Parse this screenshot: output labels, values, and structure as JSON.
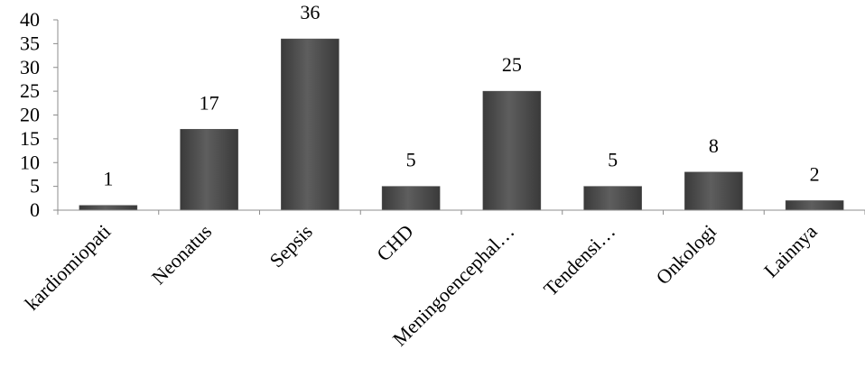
{
  "chart_data": {
    "type": "bar",
    "title": "",
    "xlabel": "",
    "ylabel": "",
    "categories": [
      "kardiomiopati",
      "Neonatus",
      "Sepsis",
      "CHD",
      "Meningoencephal…",
      "Tendensi…",
      "Onkologi",
      "Lainnya"
    ],
    "values": [
      1,
      17,
      36,
      5,
      25,
      5,
      8,
      2
    ],
    "ylim": [
      0,
      40
    ],
    "yticks": [
      0,
      5,
      10,
      15,
      20,
      25,
      30,
      35,
      40
    ],
    "grid": false,
    "legend": "none",
    "bar_color": "#4d4d4d"
  }
}
